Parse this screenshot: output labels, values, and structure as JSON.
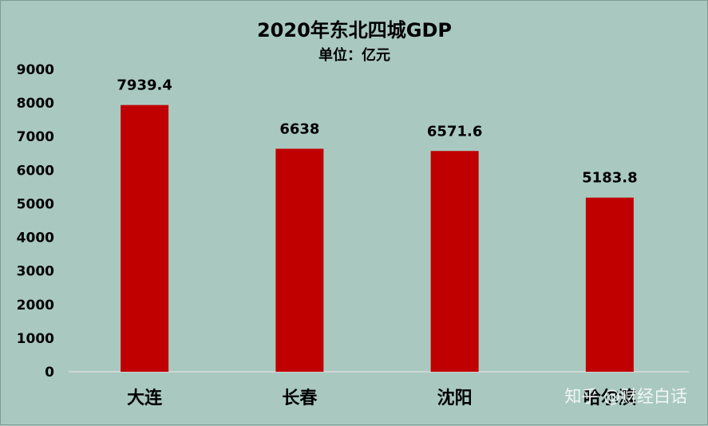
{
  "chart_data": {
    "type": "bar",
    "title": "2020年东北四城GDP",
    "subtitle": "单位：亿元",
    "categories": [
      "大连",
      "长春",
      "沈阳",
      "哈尔滨"
    ],
    "values": [
      7939.4,
      6638,
      6571.6,
      5183.8
    ],
    "data_labels": [
      "7939.4",
      "6638",
      "6571.6",
      "5183.8"
    ],
    "ylim": [
      0,
      9000
    ],
    "yticks": [
      0,
      1000,
      2000,
      3000,
      4000,
      5000,
      6000,
      7000,
      8000,
      9000
    ],
    "grid": false,
    "legend": "none",
    "bar_color": "#c00000",
    "background_color": "#a9c9c0"
  },
  "watermark": "知乎 @财经白话"
}
